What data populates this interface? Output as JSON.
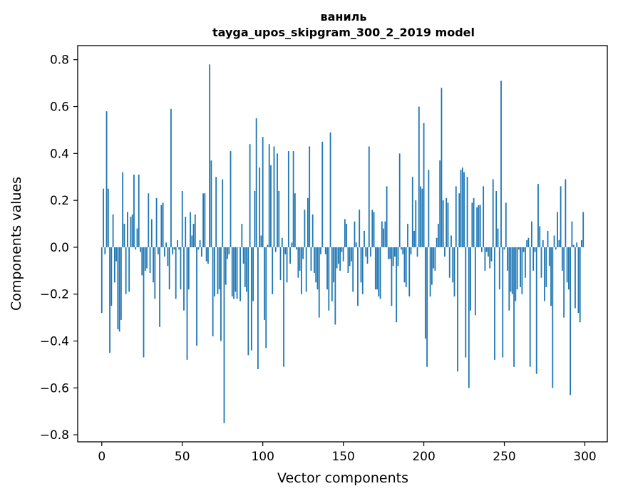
{
  "chart_data": {
    "type": "bar",
    "title_line1": "ваниль",
    "title_line2": "tayga_upos_skipgram_300_2_2019 model",
    "xlabel": "Vector components",
    "ylabel": "Components values",
    "xlim": [
      -14.95,
      313.95
    ],
    "ylim": [
      -0.83,
      0.86
    ],
    "xticks": [
      0,
      50,
      100,
      150,
      200,
      250,
      300
    ],
    "xtick_labels": [
      "0",
      "50",
      "100",
      "150",
      "200",
      "250",
      "300"
    ],
    "yticks": [
      -0.8,
      -0.6,
      -0.4,
      -0.2,
      0.0,
      0.2,
      0.4,
      0.6,
      0.8
    ],
    "ytick_labels": [
      "−0.8",
      "−0.6",
      "−0.4",
      "−0.2",
      "0.0",
      "0.2",
      "0.4",
      "0.6",
      "0.8"
    ],
    "bar_color": "#1f77b4",
    "grid": false,
    "x_start": 0,
    "values": [
      -0.28,
      0.25,
      -0.03,
      0.58,
      0.25,
      -0.45,
      -0.25,
      0.14,
      -0.15,
      -0.06,
      -0.35,
      -0.36,
      -0.31,
      0.32,
      0.1,
      -0.2,
      0.15,
      -0.19,
      0.13,
      0.14,
      0.31,
      -0.01,
      0.08,
      0.31,
      -0.02,
      -0.12,
      -0.47,
      -0.1,
      -0.09,
      0.23,
      -0.11,
      0.12,
      -0.15,
      -0.22,
      0.21,
      -0.03,
      -0.34,
      0.18,
      0.19,
      -0.04,
      0.02,
      -0.08,
      -0.18,
      0.59,
      -0.03,
      -0.01,
      -0.22,
      0.03,
      -0.01,
      -0.18,
      0.24,
      -0.27,
      0.13,
      -0.48,
      -0.18,
      0.15,
      0.05,
      0.1,
      0.14,
      -0.42,
      -0.01,
      0.03,
      -0.04,
      0.23,
      0.23,
      -0.06,
      -0.07,
      0.78,
      0.37,
      -0.38,
      -0.21,
      0.3,
      -0.2,
      -0.18,
      -0.4,
      0.29,
      -0.75,
      -0.16,
      -0.05,
      -0.03,
      0.41,
      -0.21,
      -0.22,
      -0.19,
      -0.22,
      0.0,
      -0.23,
      0.1,
      -0.07,
      -0.17,
      -0.19,
      -0.46,
      0.44,
      -0.44,
      -0.23,
      0.24,
      0.55,
      -0.52,
      0.34,
      0.05,
      0.47,
      -0.31,
      -0.43,
      0.01,
      0.44,
      0.35,
      -0.2,
      0.43,
      -0.02,
      0.4,
      0.24,
      -0.14,
      0.04,
      -0.51,
      -0.03,
      -0.15,
      0.41,
      -0.07,
      0.02,
      0.41,
      0.23,
      -0.01,
      -0.13,
      -0.1,
      -0.2,
      -0.05,
      0.16,
      -0.19,
      0.21,
      0.43,
      -0.1,
      0.14,
      -0.11,
      -0.15,
      -0.18,
      -0.3,
      -0.03,
      0.45,
      0.0,
      -0.03,
      -0.18,
      -0.27,
      0.49,
      -0.23,
      -0.15,
      -0.33,
      -0.09,
      -0.07,
      -0.1,
      -0.02,
      -0.06,
      0.12,
      0.1,
      -0.11,
      -0.08,
      -0.06,
      -0.19,
      0.11,
      0.02,
      -0.25,
      0.16,
      -0.15,
      -0.2,
      0.07,
      -0.04,
      -0.07,
      0.43,
      -0.04,
      0.16,
      0.15,
      -0.18,
      -0.18,
      -0.21,
      -0.22,
      0.11,
      0.08,
      0.11,
      0.26,
      -0.05,
      -0.05,
      -0.25,
      -0.08,
      -0.04,
      -0.32,
      -0.08,
      0.4,
      -0.01,
      -0.03,
      -0.15,
      -0.17,
      0.1,
      -0.21,
      -0.03,
      0.3,
      0.07,
      0.2,
      -0.04,
      0.6,
      0.26,
      0.25,
      0.53,
      -0.39,
      -0.51,
      0.33,
      -0.21,
      -0.16,
      -0.09,
      -0.1,
      0.04,
      0.1,
      0.37,
      0.68,
      0.2,
      -0.04,
      0.21,
      0.19,
      -0.13,
      0.05,
      -0.15,
      -0.21,
      0.26,
      -0.53,
      0.23,
      0.33,
      0.34,
      0.32,
      -0.47,
      0.3,
      -0.6,
      -0.27,
      0.19,
      0.21,
      -0.29,
      0.17,
      0.18,
      0.18,
      -0.02,
      0.26,
      -0.1,
      -0.02,
      -0.04,
      -0.09,
      -0.06,
      0.29,
      -0.48,
      0.24,
      0.08,
      -0.18,
      0.71,
      -0.47,
      -0.01,
      0.19,
      -0.1,
      -0.27,
      -0.19,
      -0.2,
      -0.51,
      -0.23,
      -0.18,
      -0.01,
      -0.17,
      -0.2,
      -0.02,
      -0.13,
      0.03,
      0.04,
      -0.51,
      0.11,
      -0.1,
      -0.02,
      -0.54,
      0.27,
      0.09,
      -0.13,
      0.03,
      -0.23,
      -0.17,
      0.07,
      -0.08,
      -0.25,
      -0.6,
      0.05,
      -0.01,
      0.15,
      0.03,
      0.26,
      -0.1,
      -0.3,
      0.29,
      -0.15,
      -0.18,
      -0.63,
      0.11,
      0.01,
      -0.26,
      0.02,
      -0.28,
      -0.32,
      0.03,
      0.15
    ]
  }
}
